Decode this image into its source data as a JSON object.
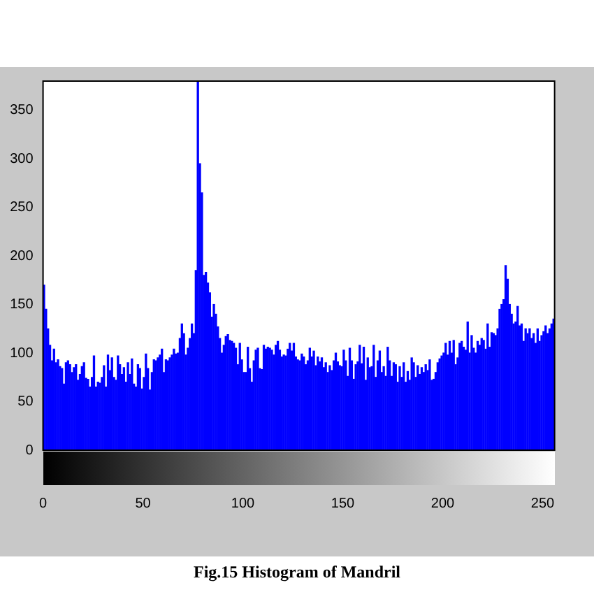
{
  "chart_data": {
    "type": "histogram",
    "color": "#0000ff",
    "bins": [
      0,
      1,
      2,
      3,
      4,
      5,
      6,
      7,
      8,
      9,
      10,
      11,
      12,
      13,
      14,
      15,
      16,
      17,
      18,
      19,
      20,
      21,
      22,
      23,
      24,
      25,
      26,
      27,
      28,
      29,
      30,
      31,
      32,
      33,
      34,
      35,
      36,
      37,
      38,
      39,
      40,
      41,
      42,
      43,
      44,
      45,
      46,
      47,
      48,
      49,
      50,
      51,
      52,
      53,
      54,
      55,
      56,
      57,
      58,
      59,
      60,
      61,
      62,
      63,
      64,
      65,
      66,
      67,
      68,
      69,
      70,
      71,
      72,
      73,
      74,
      75,
      76,
      77,
      78,
      79,
      80,
      81,
      82,
      83,
      84,
      85,
      86,
      87,
      88,
      89,
      90,
      91,
      92,
      93,
      94,
      95,
      96,
      97,
      98,
      99,
      100,
      101,
      102,
      103,
      104,
      105,
      106,
      107,
      108,
      109,
      110,
      111,
      112,
      113,
      114,
      115,
      116,
      117,
      118,
      119,
      120,
      121,
      122,
      123,
      124,
      125,
      126,
      127,
      128,
      129,
      130,
      131,
      132,
      133,
      134,
      135,
      136,
      137,
      138,
      139,
      140,
      141,
      142,
      143,
      144,
      145,
      146,
      147,
      148,
      149,
      150,
      151,
      152,
      153,
      154,
      155,
      156,
      157,
      158,
      159,
      160,
      161,
      162,
      163,
      164,
      165,
      166,
      167,
      168,
      169,
      170,
      171,
      172,
      173,
      174,
      175,
      176,
      177,
      178,
      179,
      180,
      181,
      182,
      183,
      184,
      185,
      186,
      187,
      188,
      189,
      190,
      191,
      192,
      193,
      194,
      195,
      196,
      197,
      198,
      199,
      200,
      201,
      202,
      203,
      204,
      205,
      206,
      207,
      208,
      209,
      210,
      211,
      212,
      213,
      214,
      215,
      216,
      217,
      218,
      219,
      220,
      221,
      222,
      223,
      224,
      225,
      226,
      227,
      228,
      229,
      230,
      231,
      232,
      233,
      234,
      235,
      236,
      237,
      238,
      239,
      240,
      241,
      242,
      243,
      244,
      245,
      246,
      247,
      248,
      249,
      250,
      251,
      252,
      253,
      254,
      255,
      256
    ],
    "values": [
      170,
      145,
      125,
      108,
      92,
      104,
      90,
      93,
      86,
      84,
      68,
      90,
      92,
      88,
      80,
      85,
      88,
      72,
      78,
      86,
      90,
      74,
      73,
      65,
      75,
      97,
      65,
      70,
      69,
      75,
      87,
      65,
      98,
      82,
      95,
      75,
      72,
      97,
      88,
      78,
      85,
      70,
      90,
      78,
      94,
      68,
      65,
      88,
      84,
      63,
      75,
      99,
      84,
      62,
      80,
      93,
      92,
      95,
      98,
      104,
      80,
      93,
      92,
      95,
      98,
      104,
      99,
      100,
      115,
      130,
      120,
      98,
      105,
      115,
      130,
      120,
      185,
      380,
      295,
      265,
      180,
      183,
      172,
      162,
      137,
      150,
      140,
      127,
      115,
      100,
      108,
      117,
      119,
      113,
      112,
      110,
      105,
      88,
      110,
      93,
      80,
      80,
      106,
      84,
      70,
      92,
      103,
      105,
      84,
      83,
      108,
      104,
      106,
      105,
      103,
      98,
      108,
      112,
      103,
      96,
      98,
      97,
      104,
      110,
      102,
      110,
      96,
      93,
      92,
      99,
      96,
      88,
      92,
      105,
      96,
      102,
      87,
      96,
      91,
      95,
      85,
      90,
      80,
      87,
      82,
      92,
      100,
      91,
      87,
      86,
      103,
      92,
      76,
      105,
      92,
      73,
      88,
      91,
      108,
      89,
      106,
      72,
      95,
      85,
      86,
      108,
      75,
      92,
      102,
      80,
      86,
      76,
      106,
      92,
      76,
      90,
      88,
      70,
      86,
      75,
      90,
      70,
      81,
      72,
      95,
      90,
      75,
      87,
      78,
      85,
      80,
      88,
      82,
      93,
      72,
      73,
      80,
      90,
      94,
      97,
      100,
      110,
      98,
      112,
      100,
      113,
      88,
      95,
      110,
      112,
      106,
      103,
      132,
      100,
      118,
      105,
      100,
      112,
      108,
      115,
      113,
      104,
      130,
      106,
      121,
      120,
      118,
      125,
      145,
      150,
      155,
      190,
      176,
      150,
      140,
      130,
      132,
      148,
      128,
      130,
      112,
      125,
      120,
      125,
      115,
      120,
      110,
      125,
      112,
      118,
      122,
      128,
      120,
      125,
      130,
      135
    ],
    "xlim": [
      0,
      256
    ],
    "xticks": [
      0,
      50,
      100,
      150,
      200,
      250
    ],
    "ylim": [
      0,
      380
    ],
    "yticks": [
      0,
      50,
      100,
      150,
      200,
      250,
      300,
      350
    ],
    "annotations": [
      "Fig.15 Histogram of Mandril"
    ]
  }
}
